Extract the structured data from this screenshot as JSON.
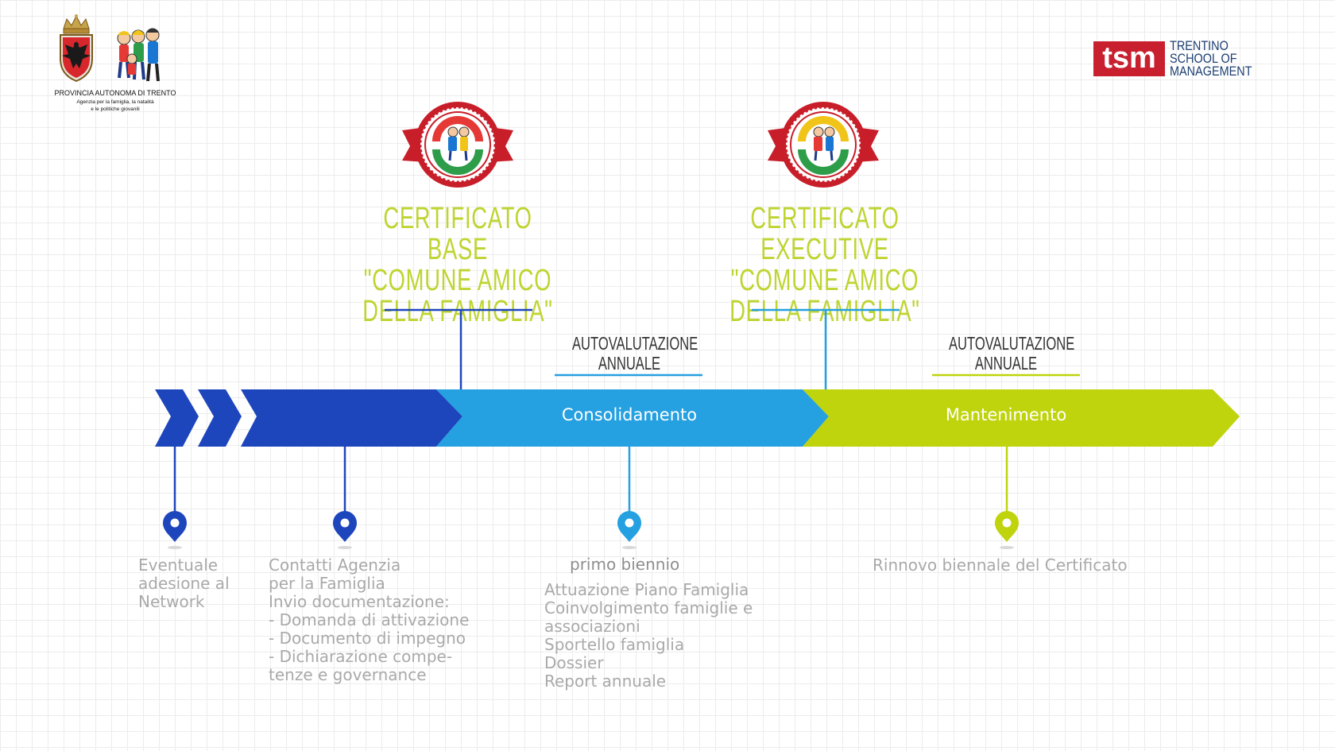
{
  "header": {
    "provincia_name": "PROVINCIA AUTONOMA DI TRENTO",
    "provincia_sub_1": "Agenzia per la famiglia, la natalità",
    "provincia_sub_2": "e le politiche giovanili",
    "tsm_mark": "tsm",
    "tsm_text_1": "TRENTINO",
    "tsm_text_2": "SCHOOL OF",
    "tsm_text_3": "MANAGEMENT"
  },
  "certificates": [
    {
      "lines": [
        "CERTIFICATO BASE",
        "\"COMUNE AMICO",
        "DELLA FAMIGLIA\""
      ]
    },
    {
      "lines": [
        "CERTIFICATO EXECUTIVE",
        "\"COMUNE AMICO",
        "DELLA FAMIGLIA\""
      ]
    }
  ],
  "autovalutazione": [
    {
      "lines": [
        "AUTOVALUTAZIONE",
        "ANNUALE"
      ]
    },
    {
      "lines": [
        "AUTOVALUTAZIONE",
        "ANNUALE"
      ]
    }
  ],
  "phases": {
    "consolidamento": "Consolidamento",
    "mantenimento": "Mantenimento"
  },
  "milestones": [
    {
      "lines": [
        "Eventuale",
        "adesione al",
        "Network"
      ]
    },
    {
      "lines": [
        "Contatti  Agenzia",
        "per la Famiglia",
        "Invio documentazione:",
        "- Domanda di attivazione",
        "- Documento di impegno",
        "- Dichiarazione compe-",
        "tenze e governance"
      ]
    },
    {
      "heading": "primo biennio",
      "lines": [
        "Attuazione Piano Famiglia",
        "Coinvolgimento famiglie e",
        "associazioni",
        "Sportello famiglia",
        "Dossier",
        "Report annuale"
      ]
    },
    {
      "lines": [
        "Rinnovo biennale del Certificato"
      ]
    }
  ],
  "colors": {
    "dark_blue": "#1d46bd",
    "light_blue": "#25a0e0",
    "lime": "#bfd40c",
    "title_lime": "#bfd430",
    "text_grey": "#a9a9a9",
    "tsm_red": "#c8202f"
  }
}
